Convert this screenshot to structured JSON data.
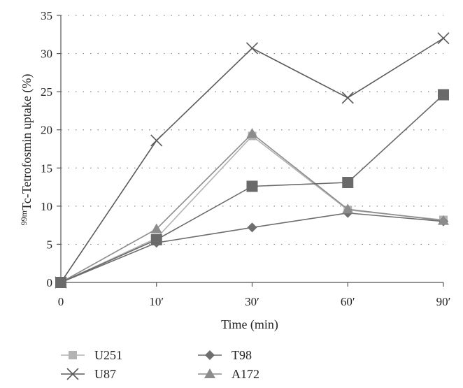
{
  "chart_data": {
    "type": "line",
    "title": "",
    "xlabel": "Time (min)",
    "ylabel_prefix": "99m",
    "ylabel": "Tc-Tetrofosmin uptake (%)",
    "categories": [
      "0",
      "10′",
      "30′",
      "60′",
      "90′"
    ],
    "ylim": [
      0,
      35
    ],
    "yticks": [
      0,
      5,
      10,
      15,
      20,
      25,
      30,
      35
    ],
    "grid": "horizontal-dotted",
    "legend_position": "bottom-left",
    "series": [
      {
        "name": "U251",
        "marker": "square",
        "color": "#b3b3b3",
        "values": [
          0,
          5.8,
          19.2,
          9.5,
          8.2
        ]
      },
      {
        "name": "U87",
        "marker": "x",
        "color": "#5a5a5a",
        "values": [
          0,
          18.6,
          30.7,
          24.2,
          32.0
        ]
      },
      {
        "name": "T98",
        "marker": "diamond",
        "color": "#6e6e6e",
        "values": [
          0,
          5.2,
          7.2,
          9.1,
          8.0
        ]
      },
      {
        "name": "A172",
        "marker": "triangle",
        "color": "#8c8c8c",
        "values": [
          0,
          7.0,
          19.5,
          9.6,
          8.1
        ]
      },
      {
        "name": "",
        "marker": "big-square",
        "color": "#6a6a6a",
        "values": [
          0,
          5.6,
          12.6,
          13.1,
          24.6
        ]
      }
    ]
  }
}
